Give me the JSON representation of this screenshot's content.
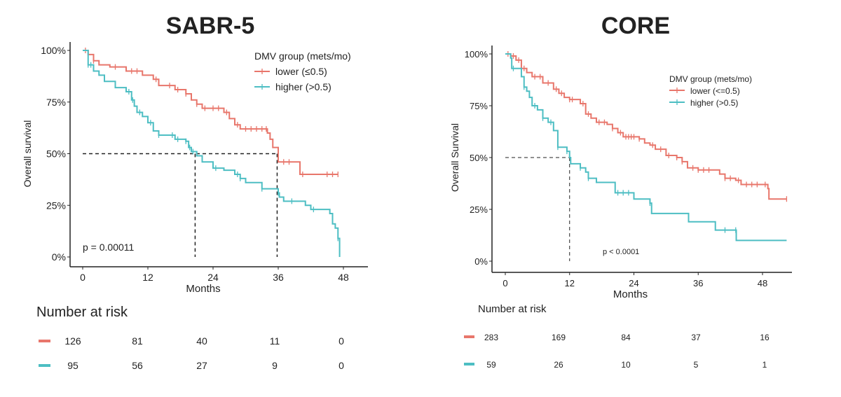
{
  "colors": {
    "lower": "#E8766B",
    "higher": "#4DBEC3"
  },
  "chart_data": [
    {
      "type": "line",
      "subtype": "kaplan-meier",
      "title": "SABR-5",
      "xlabel": "Months",
      "ylabel": "Overall survival",
      "xlim": [
        0,
        48
      ],
      "ylim": [
        0,
        100
      ],
      "xticks": [
        "0",
        "12",
        "24",
        "36",
        "48"
      ],
      "yticks": [
        "0%",
        "25%",
        "50%",
        "75%",
        "100%"
      ],
      "grid": false,
      "legend_title": "DMV group (mets/mo)",
      "legend_position": "top-right",
      "annotation": "p = 0.00011",
      "median_lines": [
        20.7,
        35.8
      ],
      "series": [
        {
          "name": "lower (≤0.5)",
          "color_key": "lower",
          "x": [
            0,
            1,
            2,
            3,
            5,
            8,
            11,
            13,
            14,
            17,
            19,
            20,
            21,
            22,
            26,
            27,
            28,
            29,
            34,
            34.5,
            35,
            36,
            40,
            47
          ],
          "y": [
            100,
            98,
            95,
            93,
            92,
            90,
            88,
            86,
            83,
            81,
            79,
            76,
            74,
            72,
            70,
            67,
            64,
            62,
            60,
            57,
            53,
            46,
            40,
            40
          ],
          "censored": [
            0.5,
            2,
            6,
            9,
            10,
            13.5,
            16,
            17.5,
            19,
            21,
            22.5,
            24,
            25,
            26.5,
            28.5,
            30,
            31,
            32,
            33,
            33.8,
            37,
            38,
            40.5,
            45,
            46,
            47
          ]
        },
        {
          "name": "higher (>0.5)",
          "color_key": "higher",
          "x": [
            0,
            1,
            2,
            3,
            4,
            6,
            8,
            9,
            9.5,
            10,
            11,
            12,
            13,
            14,
            17,
            19,
            19.5,
            20,
            21,
            22,
            24,
            26,
            28,
            29,
            30,
            33,
            36,
            36.2,
            37,
            41,
            42,
            45.5,
            46,
            46.5,
            47,
            47.3
          ],
          "y": [
            100,
            93,
            90,
            88,
            85,
            82,
            80,
            76,
            73,
            70,
            68,
            65,
            61,
            59,
            57,
            56,
            53,
            51,
            49,
            46,
            43,
            42,
            40,
            38,
            36,
            33,
            31,
            29,
            27,
            25,
            23,
            21,
            16,
            14,
            9,
            0
          ],
          "censored": [
            1,
            1.5,
            8.5,
            9.2,
            10.5,
            12.5,
            14,
            16.5,
            17.5,
            19,
            19.7,
            20.3,
            24.5,
            28.5,
            29,
            33,
            36,
            38.5,
            42.5,
            47
          ]
        }
      ],
      "risk_table": {
        "title": "Number at risk",
        "times": [
          0,
          12,
          24,
          36,
          48
        ],
        "lower": [
          "126",
          "81",
          "40",
          "11",
          "0"
        ],
        "higher": [
          "95",
          "56",
          "27",
          "9",
          "0"
        ]
      }
    },
    {
      "type": "line",
      "subtype": "kaplan-meier",
      "title": "CORE",
      "xlabel": "Months",
      "ylabel": "Overall Survival",
      "xlim": [
        0,
        52.5
      ],
      "ylim": [
        0,
        100
      ],
      "xticks": [
        "0",
        "12",
        "24",
        "36",
        "48"
      ],
      "yticks": [
        "0%",
        "25%",
        "50%",
        "75%",
        "100%"
      ],
      "grid": false,
      "legend_title": "DMV group (mets/mo)",
      "legend_position": "top-right",
      "annotation": "p < 0.0001",
      "median_lines": [
        12
      ],
      "series": [
        {
          "name": "lower (<=0.5)",
          "color_key": "lower",
          "x": [
            0,
            1,
            2,
            3,
            4,
            5,
            7,
            9,
            10,
            11,
            12,
            14,
            15,
            16,
            17,
            19,
            20,
            21,
            22,
            25,
            26,
            27,
            28,
            30,
            32,
            33,
            34,
            36,
            40,
            41,
            43,
            44,
            49,
            49.2,
            52.5
          ],
          "y": [
            100,
            99,
            97,
            93,
            91,
            89,
            86,
            83,
            81,
            79,
            78,
            76,
            71,
            69,
            67,
            66,
            64,
            62,
            60,
            59,
            57,
            56,
            54,
            51,
            50,
            48,
            45,
            44,
            42,
            40,
            39,
            37,
            35,
            30,
            30
          ],
          "censored": [
            0.5,
            1.5,
            2.5,
            3.5,
            5.5,
            6.5,
            8,
            9.5,
            10.5,
            12,
            12.5,
            14.5,
            15.5,
            17.5,
            18.5,
            20,
            21.5,
            22.5,
            23,
            23.5,
            24,
            25,
            27.5,
            29,
            30.5,
            32,
            33,
            35,
            36,
            37,
            38,
            41,
            42,
            43.5,
            45,
            46,
            47,
            48.5,
            52.5
          ]
        },
        {
          "name": "higher (>0.5)",
          "color_key": "higher",
          "x": [
            0,
            1,
            1.2,
            3,
            3.5,
            4,
            4.5,
            5,
            6,
            7,
            8,
            9,
            9.8,
            11,
            11.5,
            12,
            12.2,
            14,
            15,
            15.5,
            17,
            20.5,
            24,
            27,
            27.3,
            34,
            34.2,
            39,
            39.2,
            43,
            43.1,
            52.5
          ],
          "y": [
            100,
            98,
            93,
            89,
            84,
            82,
            79,
            75,
            73,
            69,
            67,
            63,
            55,
            55,
            53,
            50,
            47,
            45,
            43,
            40,
            38,
            33,
            30,
            28,
            23,
            23,
            19,
            19,
            15,
            15,
            10,
            10
          ],
          "censored": [
            1.5,
            3.5,
            5.5,
            7,
            8.5,
            9.8,
            11.5,
            14,
            15.5,
            21,
            22,
            23,
            27,
            41,
            43
          ]
        }
      ],
      "risk_table": {
        "title": "Number at risk",
        "times": [
          0,
          12,
          24,
          36,
          48
        ],
        "lower": [
          "283",
          "169",
          "84",
          "37",
          "16"
        ],
        "higher": [
          "59",
          "26",
          "10",
          "5",
          "1"
        ]
      }
    }
  ]
}
